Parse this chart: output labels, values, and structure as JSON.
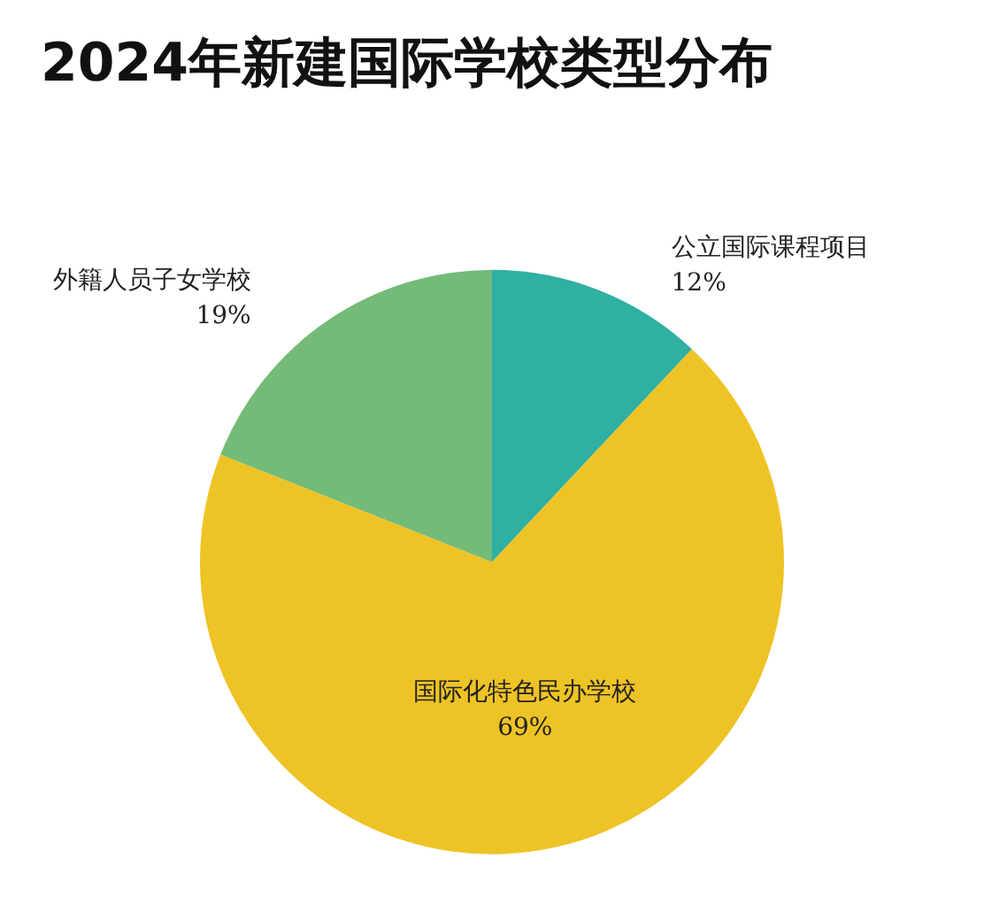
{
  "chart_data": {
    "type": "pie",
    "title": "2024年新建国际学校类型分布",
    "categories": [
      "公立国际课程项目",
      "国际化特色民办学校",
      "外籍人员子女学校"
    ],
    "values": [
      12,
      69,
      19
    ],
    "value_labels": [
      "12%",
      "69%",
      "19%"
    ],
    "colors": [
      "#2fb0a2",
      "#eec326",
      "#74bb77"
    ]
  }
}
